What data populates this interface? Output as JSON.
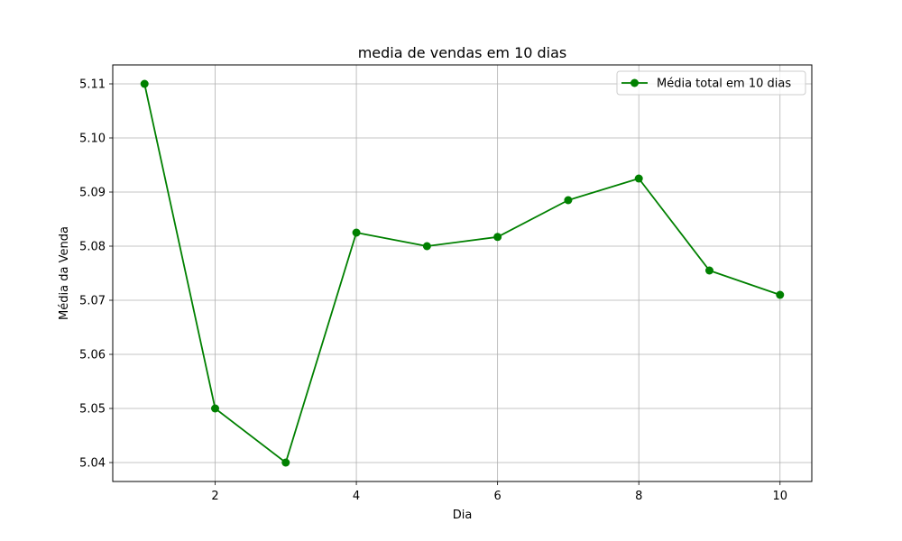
{
  "chart_data": {
    "type": "line",
    "title": "media de vendas em 10 dias",
    "xlabel": "Dia",
    "ylabel": "Média da Venda",
    "x": [
      1,
      2,
      3,
      4,
      5,
      6,
      7,
      8,
      9,
      10
    ],
    "series": [
      {
        "name": "Média total em 10 dias",
        "values": [
          5.11,
          5.05,
          5.04,
          5.0825,
          5.08,
          5.0817,
          5.0885,
          5.0925,
          5.0755,
          5.071
        ],
        "color": "#008000",
        "marker": "circle"
      }
    ],
    "xlim": [
      0.55,
      10.45
    ],
    "ylim": [
      5.0365,
      5.1135
    ],
    "xticks": [
      2,
      4,
      6,
      8,
      10
    ],
    "xtick_labels": [
      "2",
      "4",
      "6",
      "8",
      "10"
    ],
    "yticks": [
      5.04,
      5.05,
      5.06,
      5.07,
      5.08,
      5.09,
      5.1,
      5.11
    ],
    "ytick_labels": [
      "5.04",
      "5.05",
      "5.06",
      "5.07",
      "5.08",
      "5.09",
      "5.10",
      "5.11"
    ],
    "grid": true,
    "legend_position": "top-right"
  }
}
